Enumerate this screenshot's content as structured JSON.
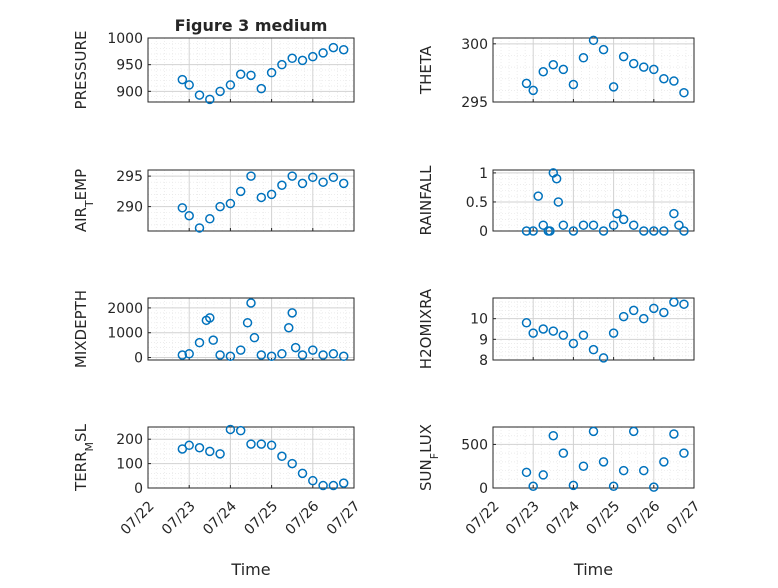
{
  "figure_title": "Figure 3 medium",
  "colors": {
    "marker": "#0072BD",
    "axis": "#262626",
    "grid": "#d2d2d2"
  },
  "chart_data": [
    {
      "type": "scatter",
      "ylabel": "PRESSURE",
      "ylabel_parts": [
        {
          "t": "PRESSURE"
        }
      ],
      "ylim": [
        880,
        1000
      ],
      "yticks": [
        900,
        950,
        1000
      ],
      "x": [
        "07/22 20:00",
        "07/23 00:00",
        "07/23 06:00",
        "07/23 12:00",
        "07/23 18:00",
        "07/24 00:00",
        "07/24 06:00",
        "07/24 12:00",
        "07/24 18:00",
        "07/25 00:00",
        "07/25 06:00",
        "07/25 12:00",
        "07/25 18:00",
        "07/26 00:00",
        "07/26 06:00",
        "07/26 12:00",
        "07/26 18:00"
      ],
      "y": [
        922,
        912,
        893,
        885,
        900,
        912,
        932,
        930,
        905,
        935,
        950,
        962,
        958,
        965,
        972,
        982,
        978
      ]
    },
    {
      "type": "scatter",
      "ylabel": "THETA",
      "ylabel_parts": [
        {
          "t": "THETA"
        }
      ],
      "ylim": [
        295,
        300.5
      ],
      "yticks": [
        295,
        300
      ],
      "x": [
        "07/22 20:00",
        "07/23 00:00",
        "07/23 06:00",
        "07/23 12:00",
        "07/23 18:00",
        "07/24 00:00",
        "07/24 06:00",
        "07/24 12:00",
        "07/24 18:00",
        "07/25 00:00",
        "07/25 06:00",
        "07/25 12:00",
        "07/25 18:00",
        "07/26 00:00",
        "07/26 06:00",
        "07/26 12:00",
        "07/26 18:00"
      ],
      "y": [
        296.6,
        296.0,
        297.6,
        298.2,
        297.8,
        296.5,
        298.8,
        300.3,
        299.5,
        296.3,
        298.9,
        298.3,
        298.0,
        297.8,
        297.0,
        296.8,
        295.8
      ]
    },
    {
      "type": "scatter",
      "ylabel": "AIR_TEMP",
      "ylabel_parts": [
        {
          "t": "AIR"
        },
        {
          "t": "T",
          "sub": true
        },
        {
          "t": "EMP"
        }
      ],
      "ylim": [
        286,
        296
      ],
      "yticks": [
        290,
        295
      ],
      "x": [
        "07/22 20:00",
        "07/23 00:00",
        "07/23 06:00",
        "07/23 12:00",
        "07/23 18:00",
        "07/24 00:00",
        "07/24 06:00",
        "07/24 12:00",
        "07/24 18:00",
        "07/25 00:00",
        "07/25 06:00",
        "07/25 12:00",
        "07/25 18:00",
        "07/26 00:00",
        "07/26 06:00",
        "07/26 12:00",
        "07/26 18:00"
      ],
      "y": [
        289.8,
        288.5,
        286.5,
        288.0,
        290.0,
        290.5,
        292.5,
        295.0,
        291.5,
        292.0,
        293.5,
        295.0,
        293.8,
        294.8,
        294.0,
        294.8,
        293.8
      ]
    },
    {
      "type": "scatter",
      "ylabel": "RAINFALL",
      "ylabel_parts": [
        {
          "t": "RAINFALL"
        }
      ],
      "ylim": [
        0,
        1.05
      ],
      "yticks": [
        0,
        0.5,
        1
      ],
      "x": [
        "07/22 20:00",
        "07/23 00:00",
        "07/23 03:00",
        "07/23 06:00",
        "07/23 09:00",
        "07/23 10:00",
        "07/23 12:00",
        "07/23 14:00",
        "07/23 15:00",
        "07/23 18:00",
        "07/24 00:00",
        "07/24 06:00",
        "07/24 12:00",
        "07/24 18:00",
        "07/25 00:00",
        "07/25 02:00",
        "07/25 06:00",
        "07/25 12:00",
        "07/25 18:00",
        "07/26 00:00",
        "07/26 06:00",
        "07/26 12:00",
        "07/26 15:00",
        "07/26 18:00"
      ],
      "y": [
        0,
        0,
        0.6,
        0.1,
        0,
        0,
        1.0,
        0.9,
        0.5,
        0.1,
        0,
        0.1,
        0.1,
        0,
        0.1,
        0.3,
        0.2,
        0.1,
        0,
        0,
        0,
        0.3,
        0.1,
        0
      ]
    },
    {
      "type": "scatter",
      "ylabel": "MIXDEPTH",
      "ylabel_parts": [
        {
          "t": "MIXDEPTH"
        }
      ],
      "ylim": [
        -100,
        2400
      ],
      "yticks": [
        0,
        1000,
        2000
      ],
      "x": [
        "07/22 20:00",
        "07/23 00:00",
        "07/23 06:00",
        "07/23 10:00",
        "07/23 12:00",
        "07/23 14:00",
        "07/23 18:00",
        "07/24 00:00",
        "07/24 06:00",
        "07/24 10:00",
        "07/24 12:00",
        "07/24 14:00",
        "07/24 18:00",
        "07/25 00:00",
        "07/25 06:00",
        "07/25 10:00",
        "07/25 12:00",
        "07/25 14:00",
        "07/25 18:00",
        "07/26 00:00",
        "07/26 06:00",
        "07/26 12:00",
        "07/26 18:00"
      ],
      "y": [
        100,
        150,
        600,
        1500,
        1600,
        700,
        100,
        50,
        300,
        1400,
        2200,
        800,
        100,
        50,
        150,
        1200,
        1800,
        400,
        100,
        300,
        100,
        150,
        50
      ]
    },
    {
      "type": "scatter",
      "ylabel": "H2OMIXRA",
      "ylabel_parts": [
        {
          "t": "H2OMIXRA"
        }
      ],
      "ylim": [
        8,
        11
      ],
      "yticks": [
        8,
        9,
        10
      ],
      "x": [
        "07/22 20:00",
        "07/23 00:00",
        "07/23 06:00",
        "07/23 12:00",
        "07/23 18:00",
        "07/24 00:00",
        "07/24 06:00",
        "07/24 12:00",
        "07/24 18:00",
        "07/25 00:00",
        "07/25 06:00",
        "07/25 12:00",
        "07/25 18:00",
        "07/26 00:00",
        "07/26 06:00",
        "07/26 12:00",
        "07/26 18:00"
      ],
      "y": [
        9.8,
        9.3,
        9.5,
        9.4,
        9.2,
        8.8,
        9.2,
        8.5,
        8.1,
        9.3,
        10.1,
        10.4,
        10.0,
        10.5,
        10.3,
        10.8,
        10.7
      ]
    },
    {
      "type": "scatter",
      "ylabel": "TERR_MSL",
      "ylabel_parts": [
        {
          "t": "TERR"
        },
        {
          "t": "M",
          "sub": true
        },
        {
          "t": "SL"
        }
      ],
      "ylim": [
        0,
        250
      ],
      "yticks": [
        0,
        100,
        200
      ],
      "x": [
        "07/22 20:00",
        "07/23 00:00",
        "07/23 06:00",
        "07/23 12:00",
        "07/23 18:00",
        "07/24 00:00",
        "07/24 06:00",
        "07/24 12:00",
        "07/24 18:00",
        "07/25 00:00",
        "07/25 06:00",
        "07/25 12:00",
        "07/25 18:00",
        "07/26 00:00",
        "07/26 06:00",
        "07/26 12:00",
        "07/26 18:00"
      ],
      "y": [
        160,
        175,
        165,
        150,
        140,
        240,
        235,
        180,
        180,
        175,
        130,
        100,
        60,
        30,
        10,
        10,
        20
      ]
    },
    {
      "type": "scatter",
      "ylabel": "SUN_FLUX",
      "ylabel_parts": [
        {
          "t": "SUN"
        },
        {
          "t": "F",
          "sub": true
        },
        {
          "t": "LUX"
        }
      ],
      "ylim": [
        0,
        700
      ],
      "yticks": [
        0,
        500
      ],
      "x": [
        "07/22 20:00",
        "07/23 00:00",
        "07/23 06:00",
        "07/23 12:00",
        "07/23 18:00",
        "07/24 00:00",
        "07/24 06:00",
        "07/24 12:00",
        "07/24 18:00",
        "07/25 00:00",
        "07/25 06:00",
        "07/25 12:00",
        "07/25 18:00",
        "07/26 00:00",
        "07/26 06:00",
        "07/26 12:00",
        "07/26 18:00"
      ],
      "y": [
        180,
        20,
        150,
        600,
        400,
        30,
        250,
        650,
        300,
        20,
        200,
        650,
        200,
        10,
        300,
        620,
        400
      ]
    }
  ],
  "x_axis": {
    "label": "Time",
    "ticks": [
      "07/22",
      "07/23",
      "07/24",
      "07/25",
      "07/26",
      "07/27"
    ]
  }
}
